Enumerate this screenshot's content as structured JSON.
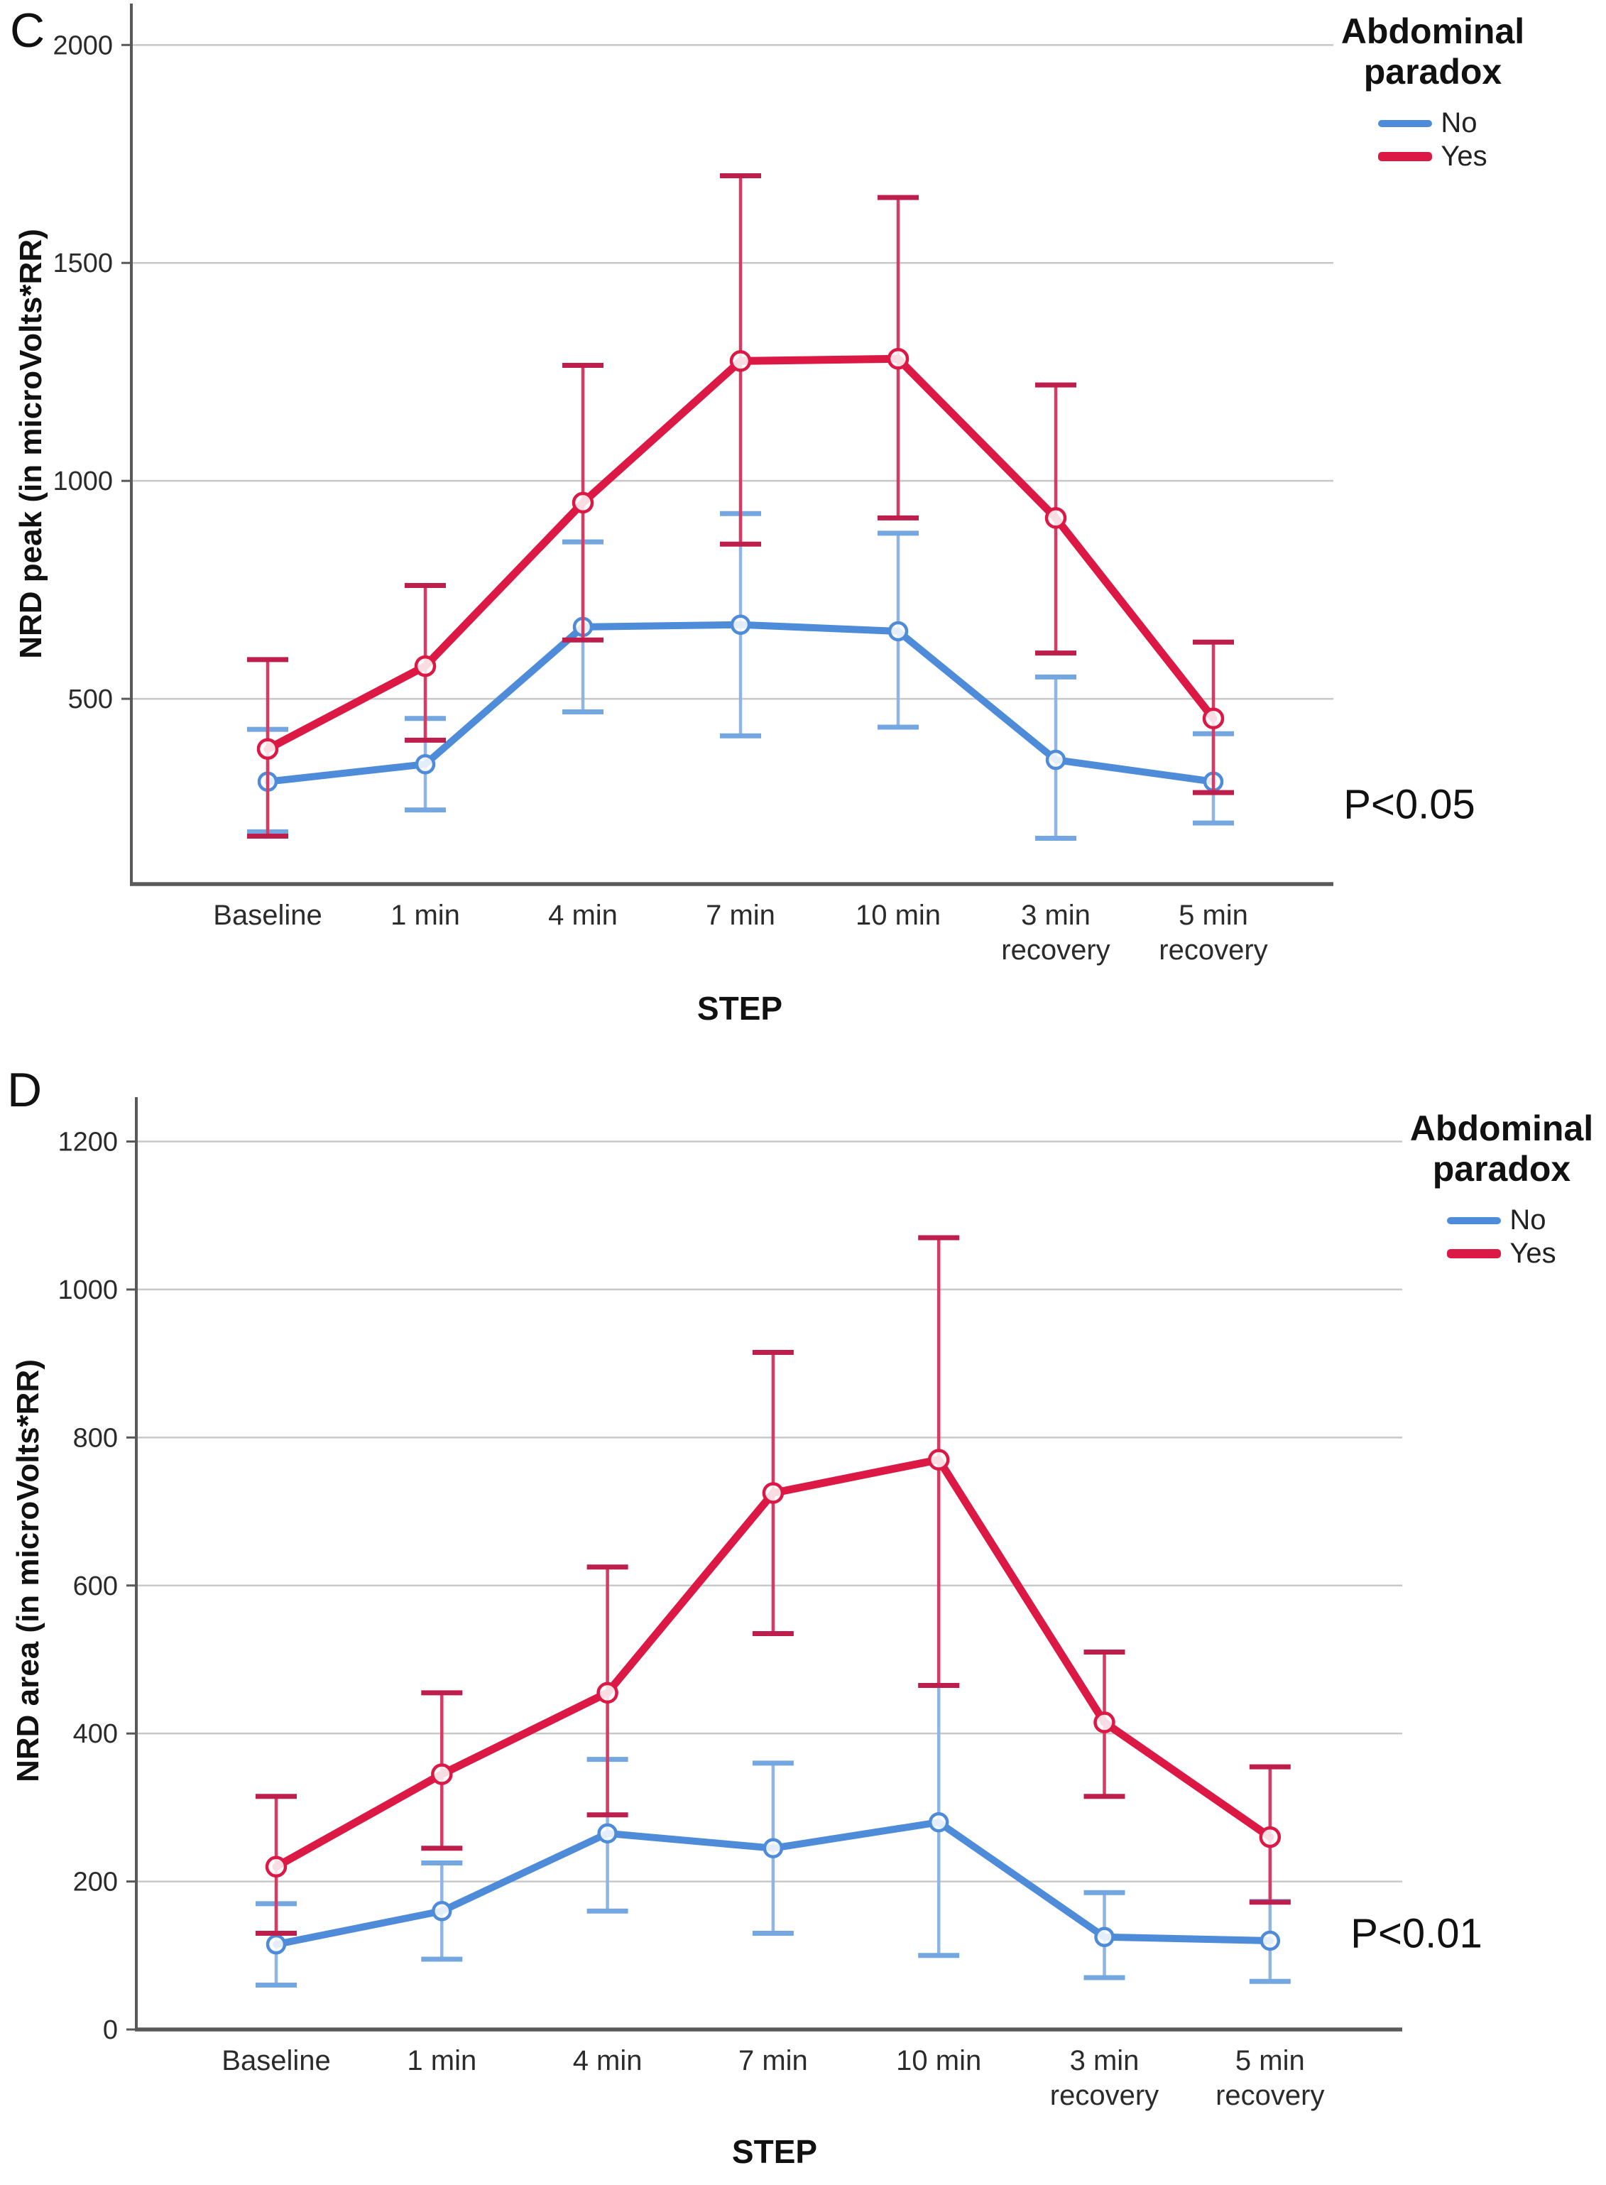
{
  "figure": {
    "background": "#ffffff",
    "description_tag": "two line charts with error bars"
  },
  "colors": {
    "no_line": "#4E8BD9",
    "no_error": "#8FB4E6",
    "no_cap": "#74A7E0",
    "yes_line": "#DC1844",
    "yes_error": "#D93A62",
    "yes_cap": "#BE1E4C",
    "grid": "#C8C8C8",
    "axis": "#595959",
    "tick_text": "#2b2b2b"
  },
  "legend": {
    "title": "Abdominal paradox",
    "title_lines": [
      "Abdominal",
      "paradox"
    ],
    "items": [
      {
        "label": "No",
        "color_key": "no"
      },
      {
        "label": "Yes",
        "color_key": "yes"
      }
    ]
  },
  "panels": [
    {
      "letter": "C",
      "ylabel": "NRD peak (in microVolts*RR)",
      "xlabel": "STEP",
      "p_label": "P<0.05"
    },
    {
      "letter": "D",
      "ylabel": "NRD area (in microVolts*RR)",
      "xlabel": "STEP",
      "p_label": "P<0.01"
    }
  ],
  "chart_data": [
    {
      "type": "line",
      "panel": "C",
      "title": "",
      "xlabel": "STEP",
      "ylabel": "NRD peak (in microVolts*RR)",
      "categories": [
        "Baseline",
        "1 min",
        "4 min",
        "7 min",
        "10 min",
        "3 min recovery",
        "5 min recovery"
      ],
      "category_lines": [
        [
          "Baseline"
        ],
        [
          "1 min"
        ],
        [
          "4 min"
        ],
        [
          "7 min"
        ],
        [
          "10 min"
        ],
        [
          "3 min",
          "recovery"
        ],
        [
          "5 min",
          "recovery"
        ]
      ],
      "ylim": [
        75,
        2095
      ],
      "yticks": [
        500,
        1000,
        1500,
        2000
      ],
      "grid": true,
      "legend_position": "top-right",
      "annotation": "P<0.05",
      "series": [
        {
          "name": "No",
          "values": [
            310,
            350,
            665,
            670,
            655,
            360,
            310
          ],
          "upper": [
            430,
            455,
            860,
            925,
            880,
            550,
            420
          ],
          "lower": [
            195,
            245,
            470,
            415,
            435,
            180,
            215
          ]
        },
        {
          "name": "Yes",
          "values": [
            385,
            575,
            950,
            1275,
            1280,
            915,
            455
          ],
          "upper": [
            590,
            760,
            1265,
            1700,
            1650,
            1220,
            630
          ],
          "lower": [
            185,
            405,
            635,
            855,
            915,
            605,
            285
          ]
        }
      ]
    },
    {
      "type": "line",
      "panel": "D",
      "title": "",
      "xlabel": "STEP",
      "ylabel": "NRD area (in microVolts*RR)",
      "categories": [
        "Baseline",
        "1 min",
        "4 min",
        "7 min",
        "10 min",
        "3 min recovery",
        "5 min recovery"
      ],
      "category_lines": [
        [
          "Baseline"
        ],
        [
          "1 min"
        ],
        [
          "4 min"
        ],
        [
          "7 min"
        ],
        [
          "10 min"
        ],
        [
          "3 min",
          "recovery"
        ],
        [
          "5 min",
          "recovery"
        ]
      ],
      "ylim": [
        0,
        1260
      ],
      "yticks": [
        0,
        200,
        400,
        600,
        800,
        1000,
        1200
      ],
      "grid": true,
      "legend_position": "top-right",
      "annotation": "P<0.01",
      "series": [
        {
          "name": "No",
          "values": [
            115,
            160,
            265,
            245,
            280,
            125,
            120
          ],
          "upper": [
            170,
            225,
            365,
            360,
            465,
            185,
            173
          ],
          "lower": [
            60,
            95,
            160,
            130,
            100,
            70,
            65
          ]
        },
        {
          "name": "Yes",
          "values": [
            220,
            345,
            455,
            725,
            770,
            415,
            260
          ],
          "upper": [
            315,
            455,
            625,
            915,
            1070,
            510,
            355
          ],
          "lower": [
            130,
            245,
            290,
            535,
            465,
            315,
            172
          ]
        }
      ]
    }
  ]
}
